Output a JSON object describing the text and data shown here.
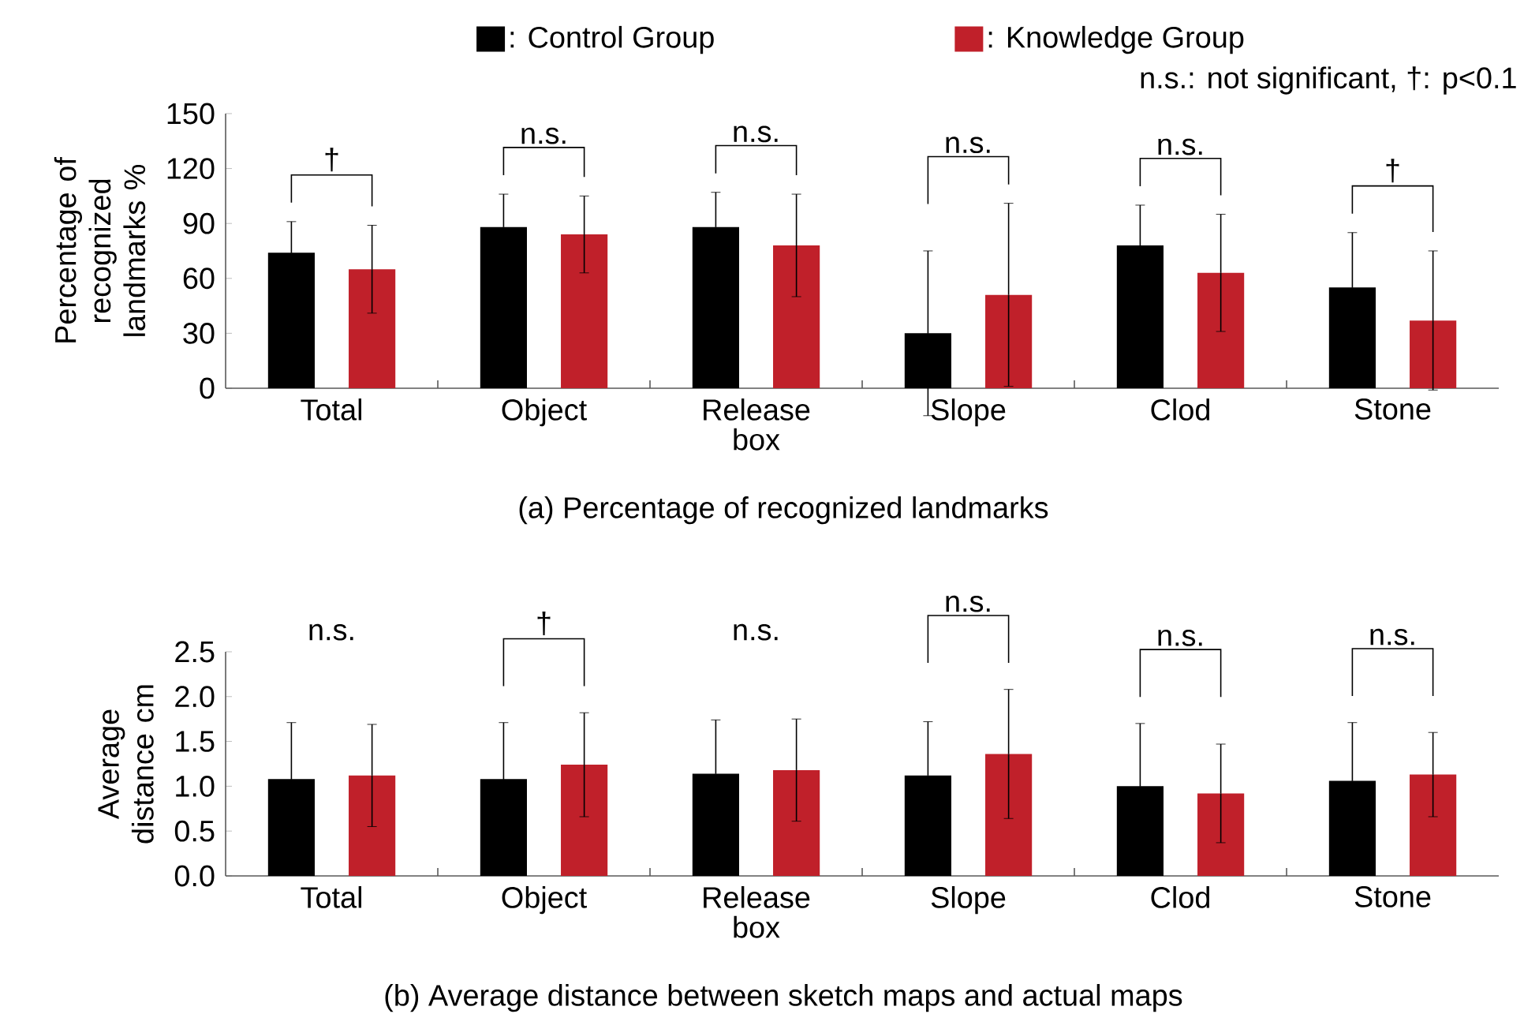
{
  "chart_data": [
    {
      "type": "bar",
      "title": "(a) Percentage of recognized landmarks",
      "ylabel": "Percentage of recognized landmarks %",
      "categories": [
        "Total",
        "Object",
        "Release box",
        "Slope",
        "Clod",
        "Stone"
      ],
      "series": [
        {
          "name": ": Control Group",
          "color": "#000000",
          "values": [
            74,
            88,
            88,
            30,
            78,
            55
          ],
          "errors": [
            17,
            18,
            19,
            45,
            22,
            30
          ]
        },
        {
          "name": ": Knowledge Group",
          "color": "#c0202a",
          "values": [
            65,
            84,
            78,
            51,
            63,
            37
          ],
          "errors": [
            24,
            21,
            28,
            50,
            32,
            38
          ]
        }
      ],
      "ylim": [
        0,
        150
      ],
      "yticks": [
        0,
        30,
        60,
        90,
        120,
        150
      ],
      "legend": "top",
      "annotations": [
        "†",
        "n.s.",
        "n.s.",
        "n.s.",
        "n.s.",
        "†",
        "n.s.: not significant, †: p<0.1"
      ]
    },
    {
      "type": "bar",
      "title": "(b) Average distance between sketch maps and actual maps",
      "ylabel": "Average distance cm",
      "categories": [
        "Total",
        "Object",
        "Release box",
        "Slope",
        "Clod",
        "Stone"
      ],
      "series": [
        {
          "color": "#000000",
          "values": [
            1.08,
            1.08,
            1.14,
            1.12,
            1.0,
            1.06
          ],
          "errors": [
            0.63,
            0.63,
            0.6,
            0.6,
            0.7,
            0.65
          ]
        },
        {
          "color": "#c0202a",
          "values": [
            1.12,
            1.24,
            1.18,
            1.36,
            0.92,
            1.13
          ],
          "errors": [
            0.57,
            0.58,
            0.57,
            0.72,
            0.55,
            0.47
          ]
        }
      ],
      "ylim": [
        0,
        2.5
      ],
      "yticks": [
        {
          "value": 0,
          "label": "0.0"
        },
        {
          "value": 0.5,
          "label": "0.5"
        },
        {
          "value": 1,
          "label": "1.0"
        },
        {
          "value": 1.5,
          "label": "1.5"
        },
        {
          "value": 2,
          "label": "2.0"
        },
        {
          "value": 2.5,
          "label": "2.5"
        }
      ],
      "annotations": [
        "n.s.",
        "†",
        "n.s.",
        "n.s.",
        "n.s.",
        "n.s."
      ]
    }
  ]
}
